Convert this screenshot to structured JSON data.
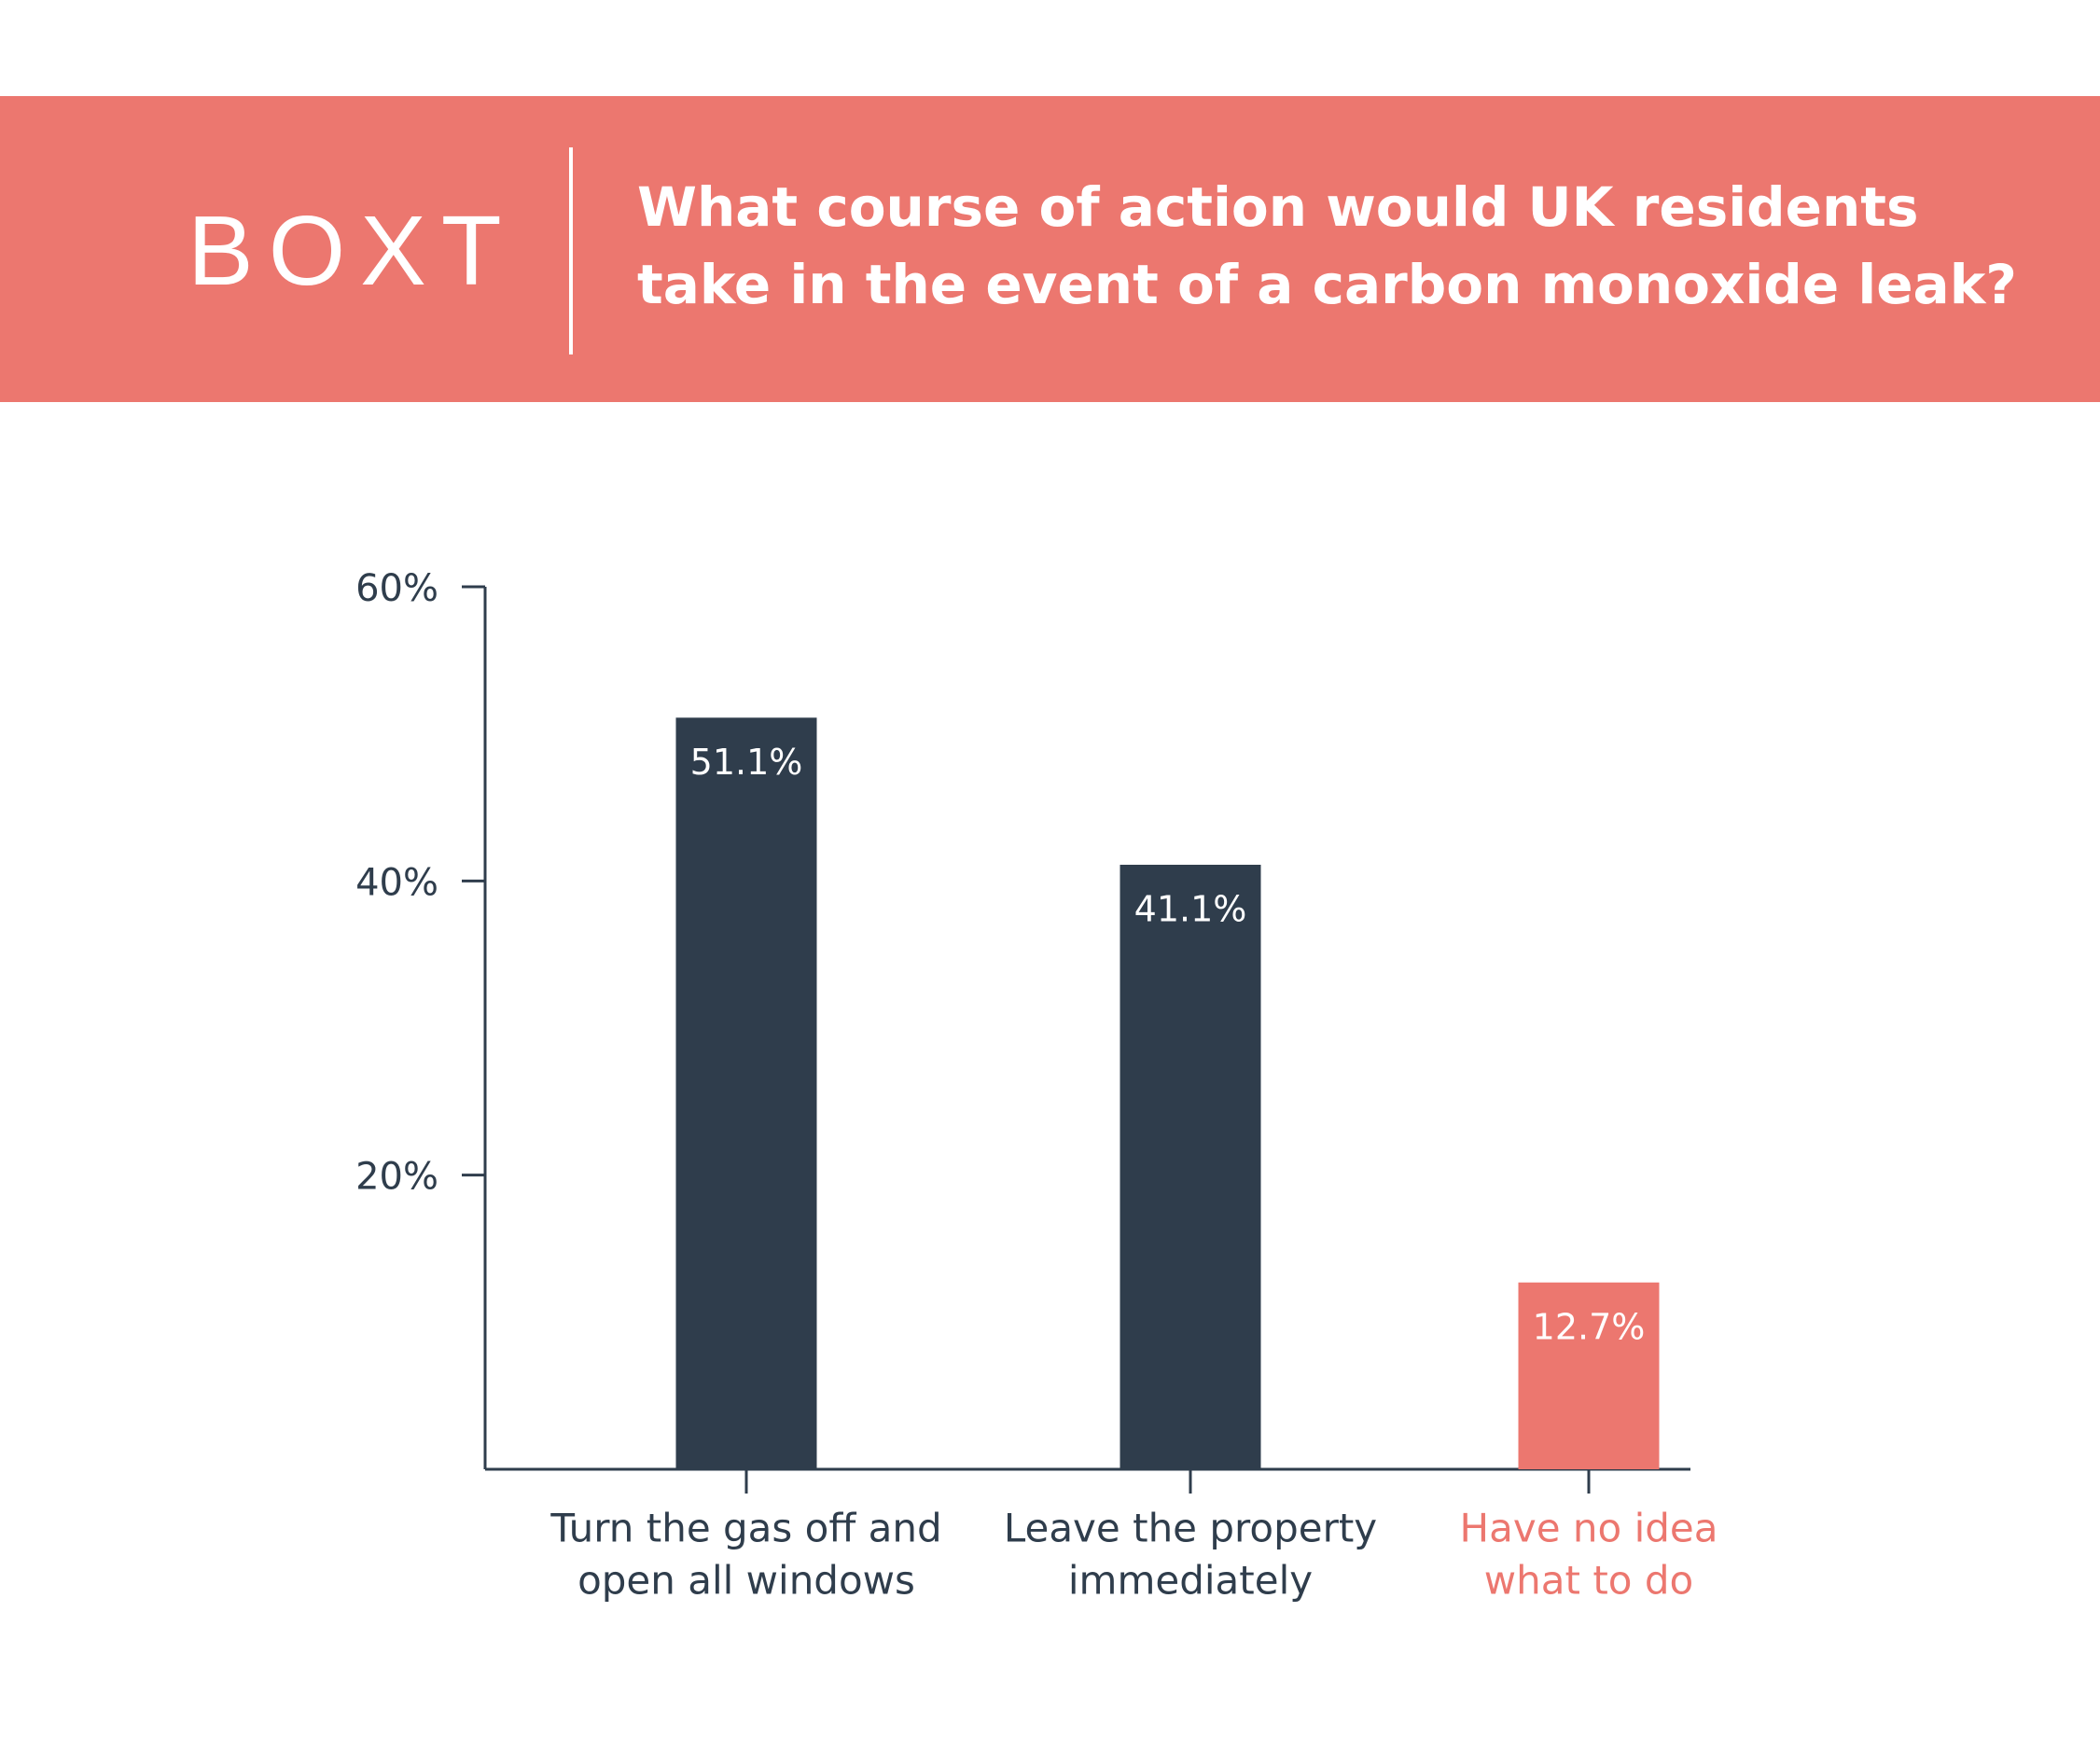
{
  "header": {
    "logo": "BOXT"
  },
  "chart_data": {
    "type": "bar",
    "title": [
      "What course of action would UK residents",
      "take in the event of a carbon monoxide leak?"
    ],
    "categories": [
      [
        "Turn the gas off and",
        "open all windows"
      ],
      [
        "Leave the property",
        "immediately"
      ],
      [
        "Have no idea",
        "what to do"
      ]
    ],
    "values": [
      51.1,
      41.1,
      12.7
    ],
    "value_labels": [
      "51.1%",
      "41.1%",
      "12.7%"
    ],
    "colors": [
      "#2f3d4c",
      "#2f3d4c",
      "#ec776f"
    ],
    "ylim": [
      0,
      60
    ],
    "yticks": [
      {
        "value": 20,
        "label": "20%"
      },
      {
        "value": 40,
        "label": "40%"
      },
      {
        "value": 60,
        "label": "60%"
      }
    ]
  }
}
